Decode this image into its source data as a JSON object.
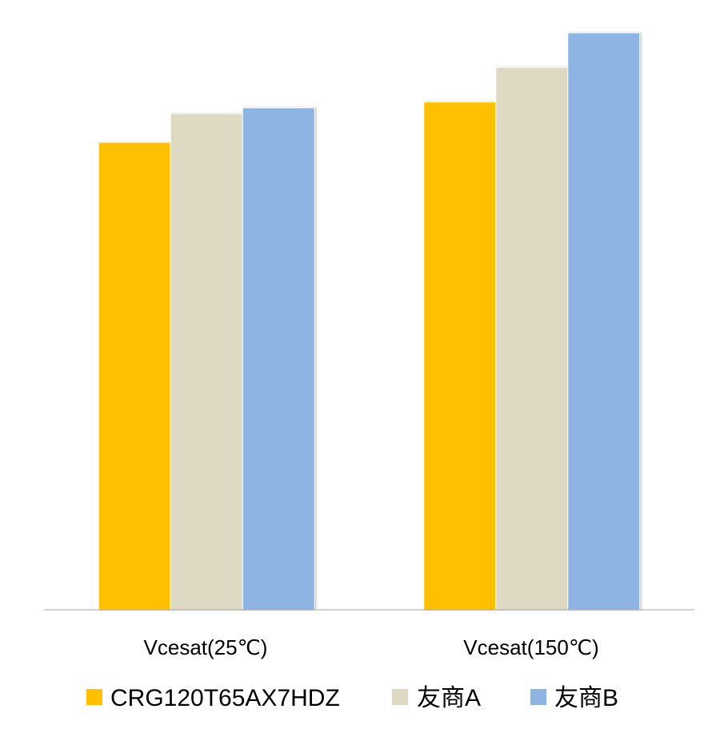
{
  "chart_data": {
    "type": "bar",
    "categories": [
      "Vcesat(25℃)",
      "Vcesat(150℃)"
    ],
    "series": [
      {
        "name": "CRG120T65AX7HDZ",
        "values": [
          81,
          88
        ],
        "color": "#FFC000"
      },
      {
        "name": "友商A",
        "values": [
          86,
          94
        ],
        "color": "#DDD9C3"
      },
      {
        "name": "友商B",
        "values": [
          87,
          100
        ],
        "color": "#8EB4E3"
      }
    ],
    "ylim": [
      0,
      100
    ],
    "grid": false,
    "legend": "bottom"
  }
}
